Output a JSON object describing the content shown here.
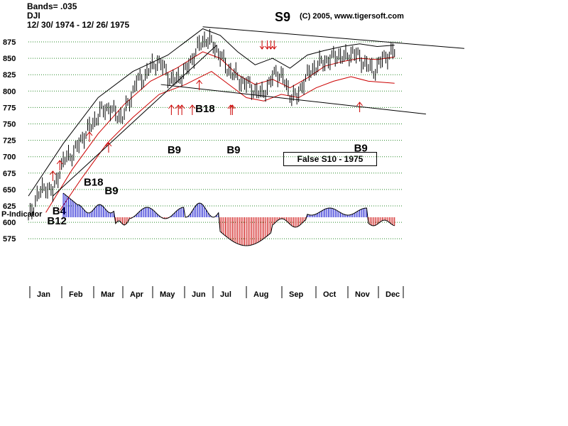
{
  "header": {
    "bands": "Bands= .035",
    "symbol": "DJI",
    "date_range": "12/ 30/ 1974 - 12/ 26/ 1975",
    "signal": "S9",
    "credit": "(C) 2005, www.tigersoft.com"
  },
  "note_box": "False S10 - 1975",
  "chart_data": {
    "type": "line",
    "y_ticks": [
      875,
      850,
      825,
      800,
      775,
      750,
      725,
      700,
      675,
      650,
      625,
      600,
      575
    ],
    "ylim": [
      575,
      875
    ],
    "months": [
      "Jan",
      "Feb",
      "Mar",
      "Apr",
      "May",
      "Jun",
      "Jul",
      "Aug",
      "Sep",
      "Oct",
      "Nov",
      "Dec"
    ],
    "indicator_label": "P-Indicator",
    "grid": true,
    "price": [
      [
        0,
        605
      ],
      [
        5,
        640
      ],
      [
        10,
        655
      ],
      [
        14,
        645
      ],
      [
        18,
        680
      ],
      [
        22,
        700
      ],
      [
        26,
        705
      ],
      [
        30,
        725
      ],
      [
        34,
        740
      ],
      [
        38,
        755
      ],
      [
        42,
        770
      ],
      [
        46,
        775
      ],
      [
        50,
        765
      ],
      [
        54,
        760
      ],
      [
        58,
        785
      ],
      [
        62,
        815
      ],
      [
        66,
        820
      ],
      [
        70,
        835
      ],
      [
        74,
        845
      ],
      [
        78,
        835
      ],
      [
        82,
        815
      ],
      [
        86,
        820
      ],
      [
        90,
        830
      ],
      [
        94,
        850
      ],
      [
        98,
        870
      ],
      [
        102,
        880
      ],
      [
        106,
        870
      ],
      [
        110,
        855
      ],
      [
        114,
        835
      ],
      [
        118,
        825
      ],
      [
        122,
        815
      ],
      [
        126,
        810
      ],
      [
        130,
        800
      ],
      [
        134,
        795
      ],
      [
        138,
        810
      ],
      [
        142,
        830
      ],
      [
        146,
        820
      ],
      [
        150,
        795
      ],
      [
        154,
        790
      ],
      [
        158,
        815
      ],
      [
        162,
        830
      ],
      [
        166,
        840
      ],
      [
        170,
        845
      ],
      [
        174,
        850
      ],
      [
        178,
        855
      ],
      [
        182,
        850
      ],
      [
        186,
        860
      ],
      [
        190,
        850
      ],
      [
        194,
        840
      ],
      [
        198,
        830
      ],
      [
        202,
        845
      ],
      [
        206,
        855
      ],
      [
        210,
        860
      ]
    ],
    "band_upper": [
      [
        0,
        640
      ],
      [
        20,
        720
      ],
      [
        40,
        790
      ],
      [
        60,
        830
      ],
      [
        80,
        855
      ],
      [
        100,
        895
      ],
      [
        110,
        885
      ],
      [
        120,
        860
      ],
      [
        130,
        840
      ],
      [
        140,
        850
      ],
      [
        150,
        835
      ],
      [
        160,
        855
      ],
      [
        170,
        862
      ],
      [
        180,
        868
      ],
      [
        190,
        872
      ],
      [
        200,
        868
      ],
      [
        210,
        870
      ]
    ],
    "ma_line": [
      [
        10,
        615
      ],
      [
        25,
        680
      ],
      [
        40,
        735
      ],
      [
        55,
        780
      ],
      [
        70,
        815
      ],
      [
        85,
        835
      ],
      [
        100,
        860
      ],
      [
        110,
        850
      ],
      [
        120,
        825
      ],
      [
        130,
        810
      ],
      [
        140,
        818
      ],
      [
        150,
        805
      ],
      [
        160,
        820
      ],
      [
        170,
        838
      ],
      [
        180,
        845
      ],
      [
        190,
        850
      ],
      [
        200,
        848
      ],
      [
        210,
        852
      ]
    ],
    "band_lower": [
      [
        18,
        618
      ],
      [
        30,
        665
      ],
      [
        45,
        720
      ],
      [
        60,
        760
      ],
      [
        75,
        795
      ],
      [
        90,
        810
      ],
      [
        105,
        830
      ],
      [
        115,
        810
      ],
      [
        125,
        790
      ],
      [
        135,
        785
      ],
      [
        145,
        795
      ],
      [
        155,
        790
      ],
      [
        165,
        805
      ],
      [
        175,
        815
      ],
      [
        185,
        822
      ],
      [
        195,
        815
      ],
      [
        210,
        812
      ]
    ],
    "trendlines": [
      {
        "from": [
          14,
          640
        ],
        "to": [
          108,
          870
        ]
      },
      {
        "from": [
          100,
          898
        ],
        "to": [
          250,
          865
        ]
      },
      {
        "from": [
          76,
          810
        ],
        "to": [
          228,
          765
        ]
      }
    ],
    "signals": [
      {
        "label": "B12",
        "x": 14,
        "y_text": 597,
        "type": "buy"
      },
      {
        "label": "B4",
        "x": 17,
        "y_text": 612,
        "type": "buy"
      },
      {
        "label": "B18",
        "x": 35,
        "y_text": 656,
        "type": "buy"
      },
      {
        "label": "B9",
        "x": 47,
        "y_text": 643,
        "type": "buy"
      },
      {
        "label": "B9",
        "x": 83,
        "y_text": 705,
        "type": "buy"
      },
      {
        "label": "B18",
        "x": 99,
        "y_text": 768,
        "type": "buy"
      },
      {
        "label": "B9",
        "x": 117,
        "y_text": 705,
        "type": "buy"
      },
      {
        "label": "B9",
        "x": 190,
        "y_text": 708,
        "type": "buy"
      }
    ],
    "sell_arrows_x": [
      134,
      137,
      139,
      141
    ]
  }
}
